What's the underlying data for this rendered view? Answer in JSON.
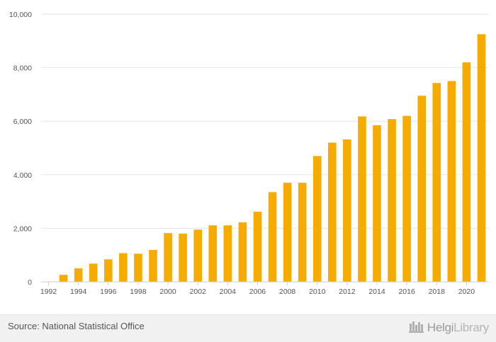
{
  "chart_data": {
    "type": "bar",
    "categories": [
      "1992",
      "1993",
      "1994",
      "1995",
      "1996",
      "1997",
      "1998",
      "1999",
      "2000",
      "2001",
      "2002",
      "2003",
      "2004",
      "2005",
      "2006",
      "2007",
      "2008",
      "2009",
      "2010",
      "2011",
      "2012",
      "2013",
      "2014",
      "2015",
      "2016",
      "2017",
      "2018",
      "2019",
      "2020",
      "2021"
    ],
    "x_tick_labels": [
      "1992",
      "1994",
      "1996",
      "1998",
      "2000",
      "2002",
      "2004",
      "2006",
      "2008",
      "2010",
      "2012",
      "2014",
      "2016",
      "2018",
      "2020"
    ],
    "values": [
      0,
      260,
      500,
      680,
      840,
      1070,
      1050,
      1190,
      1820,
      1800,
      1950,
      2110,
      2110,
      2220,
      2620,
      3350,
      3700,
      3700,
      4700,
      5200,
      5320,
      6180,
      5850,
      6080,
      6200,
      6950,
      7430,
      7500,
      8200,
      9250
    ],
    "ylim": [
      0,
      10000
    ],
    "y_ticks": [
      0,
      2000,
      4000,
      6000,
      8000,
      10000
    ],
    "y_tick_labels": [
      "0",
      "2,000",
      "4,000",
      "6,000",
      "8,000",
      "10,000"
    ],
    "grid": true,
    "bar_color": "#f5ab00",
    "title": "",
    "xlabel": "",
    "ylabel": ""
  },
  "footer": {
    "source": "Source: National Statistical Office",
    "brand_bold": "Helgi",
    "brand_light": "Library",
    "brand_icon": "helgi-library-logo-icon"
  }
}
